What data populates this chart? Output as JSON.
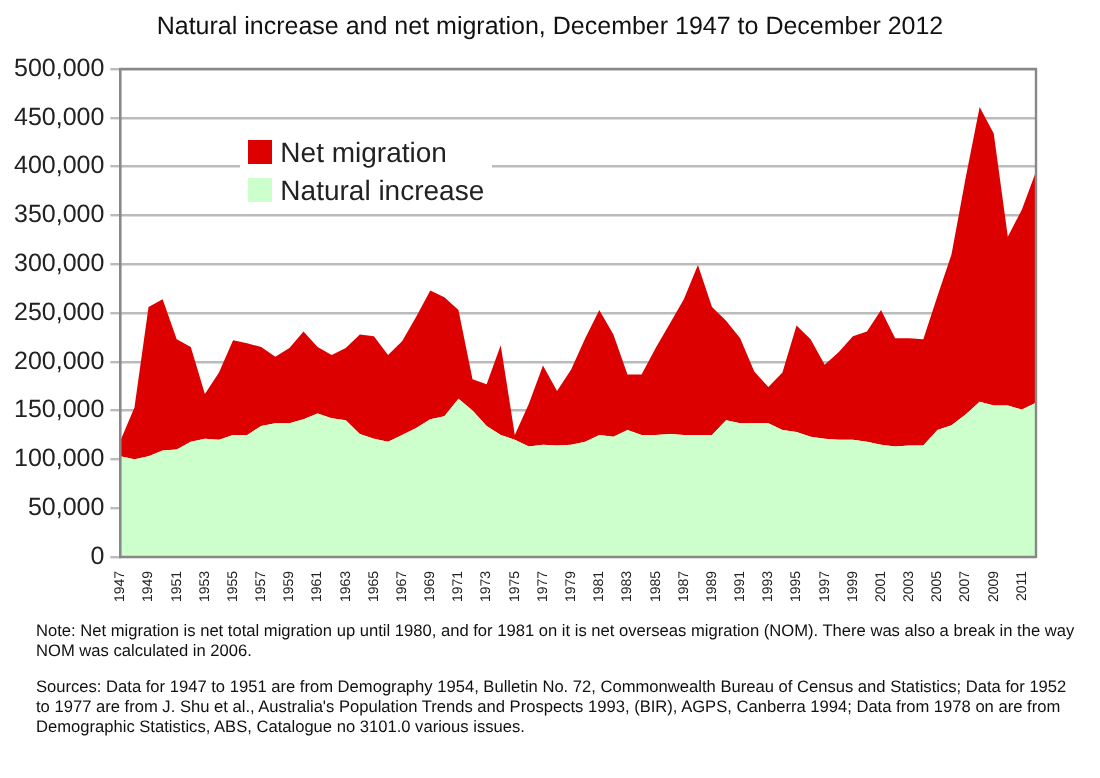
{
  "chart_data": {
    "type": "area",
    "title": "Natural increase and net migration, December 1947 to December 2012",
    "categories": [
      "1947",
      null,
      "1949",
      null,
      "1951",
      null,
      "1953",
      null,
      "1955",
      null,
      "1957",
      null,
      "1959",
      null,
      "1961",
      null,
      "1963",
      null,
      "1965",
      null,
      "1967",
      null,
      "1969",
      null,
      "1971",
      null,
      "1973",
      null,
      "1975",
      null,
      "1977",
      null,
      "1979",
      null,
      "1981",
      null,
      "1983",
      null,
      "1985",
      null,
      "1987",
      null,
      "1989",
      null,
      "1991",
      null,
      "1993",
      null,
      "1995",
      null,
      "1997",
      null,
      "1999",
      null,
      "2001",
      null,
      "2003",
      null,
      "2005",
      null,
      "2007",
      null,
      "2009",
      null,
      "2011",
      null
    ],
    "stacked": true,
    "series": [
      {
        "name": "Natural increase",
        "color": "#ccffcc",
        "values": [
          103000,
          100000,
          103000,
          109000,
          110000,
          118000,
          121000,
          120000,
          125000,
          125000,
          134000,
          137000,
          137000,
          141000,
          147000,
          142000,
          140000,
          126000,
          121000,
          118000,
          125000,
          132000,
          141000,
          144000,
          162000,
          150000,
          134000,
          125000,
          120000,
          113000,
          115000,
          114000,
          115000,
          118000,
          125000,
          123000,
          130000,
          125000,
          125000,
          126000,
          125000,
          125000,
          125000,
          140000,
          137000,
          137000,
          137000,
          130000,
          128000,
          123000,
          121000,
          120000,
          120000,
          118000,
          115000,
          113000,
          114000,
          114000,
          130000,
          135000,
          146000,
          159000,
          155000,
          155000,
          151000,
          158000
        ]
      },
      {
        "name": "Net migration",
        "color": "#dd0000",
        "values": [
          16000,
          53000,
          153000,
          155000,
          113000,
          97000,
          46000,
          69000,
          97000,
          94000,
          81000,
          68000,
          77000,
          90000,
          68000,
          65000,
          74000,
          102000,
          105000,
          89000,
          96000,
          114000,
          132000,
          122000,
          91000,
          32000,
          43000,
          92000,
          5000,
          44000,
          81000,
          56000,
          77000,
          106000,
          128000,
          105000,
          57000,
          62000,
          89000,
          113000,
          139000,
          174000,
          131000,
          102000,
          87000,
          53000,
          37000,
          59000,
          109000,
          100000,
          76000,
          90000,
          106000,
          113000,
          138000,
          111000,
          110000,
          109000,
          137000,
          175000,
          242000,
          302000,
          279000,
          173000,
          205000,
          237000
        ]
      }
    ],
    "ylim": [
      0,
      500000
    ],
    "yticks": [
      {
        "value": 0,
        "label": "0"
      },
      {
        "value": 50000,
        "label": "50,000"
      },
      {
        "value": 100000,
        "label": "100,000"
      },
      {
        "value": 150000,
        "label": "150,000"
      },
      {
        "value": 200000,
        "label": "200,000"
      },
      {
        "value": 250000,
        "label": "250,000"
      },
      {
        "value": 300000,
        "label": "300,000"
      },
      {
        "value": 350000,
        "label": "350,000"
      },
      {
        "value": 400000,
        "label": "400,000"
      },
      {
        "value": 450000,
        "label": "450,000"
      },
      {
        "value": 500000,
        "label": "500,000"
      }
    ],
    "grid": "y",
    "legend": "top left",
    "annotations": [
      "Note: Net migration is net total migration up until 1980, and for 1981 on it is net overseas migration (NOM). There was also a break in the way NOM was calculated in 2006.",
      "Sources: Data for 1947 to 1951 are from Demography 1954, Bulletin No. 72, Commonwealth Bureau of Census and Statistics; Data for 1952 to 1977 are from J. Shu et al., Australia's Population Trends and Prospects 1993, (BIR), AGPS, Canberra 1994; Data from 1978 on are from Demographic Statistics, ABS, Catalogue no 3101.0  various issues."
    ]
  }
}
